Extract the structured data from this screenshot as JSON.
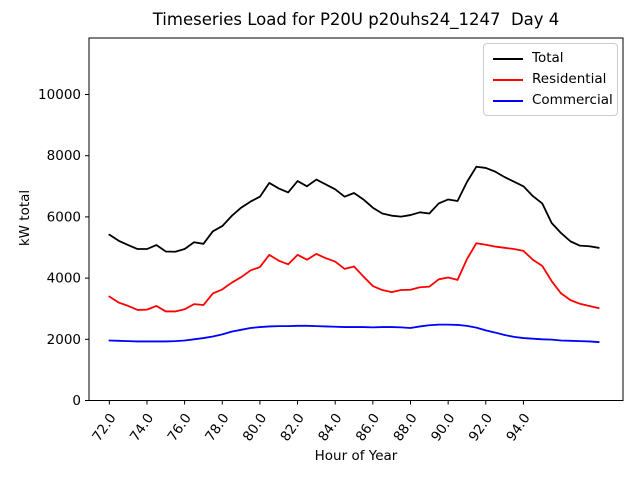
{
  "chart_data": {
    "type": "line",
    "title": "Timeseries Load for P20U p20uhs24_1247  Day 4",
    "xlabel": "Hour of Year",
    "ylabel": "kW total",
    "grid": false,
    "legend_position": "upper right",
    "xlim": [
      70.92,
      99.29
    ],
    "ylim": [
      0,
      11846
    ],
    "xticks": [
      72,
      74,
      76,
      78,
      80,
      82,
      84,
      86,
      88,
      90,
      92,
      94
    ],
    "xtick_labels": [
      "72.0",
      "74.0",
      "76.0",
      "78.0",
      "80.0",
      "82.0",
      "84.0",
      "86.0",
      "88.0",
      "90.0",
      "92.0",
      "94.0"
    ],
    "yticks": [
      0,
      2000,
      4000,
      6000,
      8000,
      10000
    ],
    "ytick_labels": [
      "0",
      "2000",
      "4000",
      "6000",
      "8000",
      "10000"
    ],
    "x": [
      72.0,
      72.5,
      73.0,
      73.5,
      74.0,
      74.5,
      75.0,
      75.5,
      76.0,
      76.5,
      77.0,
      77.5,
      78.0,
      78.5,
      79.0,
      79.5,
      80.0,
      80.5,
      81.0,
      81.5,
      82.0,
      82.5,
      83.0,
      83.5,
      84.0,
      84.5,
      85.0,
      85.5,
      86.0,
      86.5,
      87.0,
      87.5,
      88.0,
      88.5,
      89.0,
      89.5,
      90.0,
      90.5,
      91.0,
      91.5,
      92.0,
      92.5,
      93.0,
      93.5,
      94.0,
      94.5,
      95.0,
      95.5,
      96.0,
      96.5,
      97.0,
      97.5,
      98.0
    ],
    "series": [
      {
        "name": "Total",
        "color": "#000000",
        "values": [
          5420,
          5220,
          5080,
          4950,
          4950,
          5080,
          4870,
          4860,
          4950,
          5170,
          5120,
          5530,
          5700,
          6030,
          6300,
          6500,
          6660,
          7110,
          6930,
          6800,
          7170,
          7000,
          7220,
          7060,
          6900,
          6660,
          6780,
          6570,
          6300,
          6110,
          6040,
          6010,
          6060,
          6150,
          6110,
          6440,
          6570,
          6520,
          7140,
          7640,
          7600,
          7480,
          7300,
          7150,
          7000,
          6680,
          6440,
          5800,
          5470,
          5200,
          5060,
          5040,
          4990
        ]
      },
      {
        "name": "Residential",
        "color": "#ff0000",
        "values": [
          3400,
          3200,
          3090,
          2960,
          2970,
          3090,
          2910,
          2910,
          2980,
          3150,
          3120,
          3500,
          3630,
          3850,
          4030,
          4250,
          4360,
          4760,
          4570,
          4450,
          4760,
          4600,
          4790,
          4650,
          4540,
          4300,
          4380,
          4050,
          3740,
          3610,
          3540,
          3610,
          3620,
          3700,
          3720,
          3960,
          4020,
          3940,
          4620,
          5140,
          5090,
          5030,
          4990,
          4950,
          4890,
          4600,
          4400,
          3900,
          3500,
          3280,
          3160,
          3090,
          3020
        ]
      },
      {
        "name": "Commercial",
        "color": "#0000ff",
        "values": [
          1960,
          1950,
          1940,
          1930,
          1930,
          1930,
          1930,
          1940,
          1960,
          2000,
          2040,
          2090,
          2160,
          2250,
          2310,
          2370,
          2400,
          2420,
          2430,
          2430,
          2440,
          2440,
          2430,
          2420,
          2410,
          2400,
          2400,
          2400,
          2390,
          2400,
          2400,
          2390,
          2370,
          2420,
          2460,
          2480,
          2480,
          2470,
          2440,
          2380,
          2290,
          2220,
          2140,
          2080,
          2040,
          2020,
          2000,
          1990,
          1960,
          1950,
          1940,
          1930,
          1910
        ]
      }
    ]
  }
}
